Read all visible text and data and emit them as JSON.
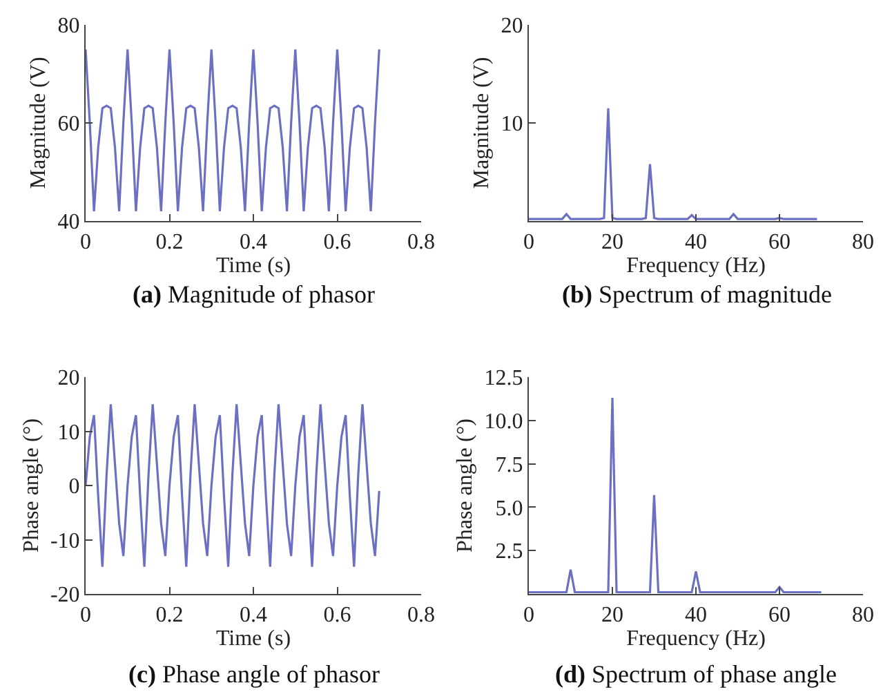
{
  "chart_data": [
    {
      "type": "line",
      "title": "(a) Magnitude of phasor",
      "xlabel": "Time (s)",
      "ylabel": "Magnitude (V)",
      "xlim": [
        0,
        0.8
      ],
      "ylim": [
        40,
        80
      ],
      "xticks": [
        0,
        0.2,
        0.4,
        0.6,
        0.8
      ],
      "yticks": [
        40,
        60,
        80
      ],
      "x": [
        0,
        0.01,
        0.02,
        0.03,
        0.04,
        0.05,
        0.06,
        0.07,
        0.08,
        0.09,
        0.1,
        0.11,
        0.12,
        0.13,
        0.14,
        0.15,
        0.16,
        0.17,
        0.18,
        0.19,
        0.2,
        0.21,
        0.22,
        0.23,
        0.24,
        0.25,
        0.26,
        0.27,
        0.28,
        0.29,
        0.3,
        0.31,
        0.32,
        0.33,
        0.34,
        0.35,
        0.36,
        0.37,
        0.38,
        0.39,
        0.4,
        0.41,
        0.42,
        0.43,
        0.44,
        0.45,
        0.46,
        0.47,
        0.48,
        0.49,
        0.5,
        0.51,
        0.52,
        0.53,
        0.54,
        0.55,
        0.56,
        0.57,
        0.58,
        0.59,
        0.6,
        0.61,
        0.62,
        0.63,
        0.64,
        0.65,
        0.66,
        0.67,
        0.68,
        0.69,
        0.7
      ],
      "series": [
        {
          "color": "#6b70c2",
          "values": [
            75,
            60,
            42,
            55,
            63,
            63.5,
            63,
            55,
            42,
            60,
            75,
            60,
            42,
            55,
            63,
            63.5,
            63,
            55,
            42,
            60,
            75,
            60,
            42,
            55,
            63,
            63.5,
            63,
            55,
            42,
            60,
            75,
            60,
            42,
            55,
            63,
            63.5,
            63,
            55,
            42,
            60,
            75,
            60,
            42,
            55,
            63,
            63.5,
            63,
            55,
            42,
            60,
            75,
            60,
            42,
            55,
            63,
            63.5,
            63,
            55,
            42,
            60,
            75,
            60,
            42,
            55,
            63,
            63.5,
            63,
            55,
            42,
            60,
            75
          ]
        }
      ]
    },
    {
      "type": "line",
      "title": "(b) Spectrum of magnitude",
      "xlabel": "Frequency (Hz)",
      "ylabel": "Magnitude (V)",
      "xlim": [
        0,
        80
      ],
      "ylim": [
        0,
        20
      ],
      "xticks": [
        0,
        20,
        40,
        60,
        80
      ],
      "yticks": [
        10,
        20
      ],
      "x": [
        0,
        1,
        2,
        3,
        4,
        5,
        6,
        7,
        8,
        9,
        10,
        11,
        12,
        13,
        14,
        15,
        16,
        17,
        18,
        19,
        20,
        21,
        22,
        23,
        24,
        25,
        26,
        27,
        28,
        29,
        30,
        31,
        32,
        33,
        34,
        35,
        36,
        37,
        38,
        39,
        40,
        41,
        42,
        43,
        44,
        45,
        46,
        47,
        48,
        49,
        50,
        51,
        52,
        53,
        54,
        55,
        56,
        57,
        58,
        59,
        60,
        61,
        62,
        63,
        64,
        65,
        66,
        67,
        68,
        69
      ],
      "series": [
        {
          "color": "#6b70c2",
          "values": [
            0.2,
            0.2,
            0.2,
            0.2,
            0.2,
            0.2,
            0.2,
            0.2,
            0.2,
            0.7,
            0.2,
            0.2,
            0.2,
            0.2,
            0.2,
            0.2,
            0.2,
            0.2,
            0.3,
            11.5,
            0.3,
            0.2,
            0.2,
            0.2,
            0.2,
            0.2,
            0.2,
            0.2,
            0.3,
            5.8,
            0.3,
            0.2,
            0.2,
            0.2,
            0.2,
            0.2,
            0.2,
            0.2,
            0.2,
            0.6,
            0.2,
            0.2,
            0.2,
            0.2,
            0.2,
            0.2,
            0.2,
            0.2,
            0.2,
            0.7,
            0.2,
            0.2,
            0.2,
            0.2,
            0.2,
            0.2,
            0.2,
            0.2,
            0.2,
            0.2,
            0.3,
            0.2,
            0.2,
            0.2,
            0.2,
            0.2,
            0.2,
            0.2,
            0.2,
            0.2
          ]
        }
      ]
    },
    {
      "type": "line",
      "title": "(c) Phase angle of phasor",
      "xlabel": "Time (s)",
      "ylabel": "Phase angle (°)",
      "xlim": [
        0,
        0.8
      ],
      "ylim": [
        -20,
        20
      ],
      "xticks": [
        0,
        0.2,
        0.4,
        0.6,
        0.8
      ],
      "yticks": [
        -20,
        -10,
        0,
        10,
        20
      ],
      "x": [
        0,
        0.01,
        0.02,
        0.03,
        0.04,
        0.05,
        0.06,
        0.07,
        0.08,
        0.09,
        0.1,
        0.11,
        0.12,
        0.13,
        0.14,
        0.15,
        0.16,
        0.17,
        0.18,
        0.19,
        0.2,
        0.21,
        0.22,
        0.23,
        0.24,
        0.25,
        0.26,
        0.27,
        0.28,
        0.29,
        0.3,
        0.31,
        0.32,
        0.33,
        0.34,
        0.35,
        0.36,
        0.37,
        0.38,
        0.39,
        0.4,
        0.41,
        0.42,
        0.43,
        0.44,
        0.45,
        0.46,
        0.47,
        0.48,
        0.49,
        0.5,
        0.51,
        0.52,
        0.53,
        0.54,
        0.55,
        0.56,
        0.57,
        0.58,
        0.59,
        0.6,
        0.61,
        0.62,
        0.63,
        0.64,
        0.65,
        0.66,
        0.67,
        0.68,
        0.69,
        0.7
      ],
      "series": [
        {
          "color": "#6b70c2",
          "values": [
            0,
            9,
            13,
            -2,
            -15,
            2,
            15,
            4,
            -7,
            -13,
            0,
            9,
            13,
            -2,
            -15,
            2,
            15,
            4,
            -7,
            -13,
            0,
            9,
            13,
            -2,
            -15,
            2,
            15,
            4,
            -7,
            -13,
            0,
            9,
            13,
            -2,
            -15,
            2,
            15,
            4,
            -7,
            -13,
            0,
            9,
            13,
            -2,
            -15,
            2,
            15,
            4,
            -7,
            -13,
            0,
            9,
            13,
            -2,
            -15,
            2,
            15,
            4,
            -7,
            -13,
            0,
            9,
            13,
            -2,
            -15,
            2,
            15,
            4,
            -7,
            -13,
            -1
          ]
        }
      ]
    },
    {
      "type": "line",
      "title": "(d) Spectrum of phase angle",
      "xlabel": "Frequency (Hz)",
      "ylabel": "Phase angle (°)",
      "xlim": [
        0,
        80
      ],
      "ylim": [
        0,
        12.5
      ],
      "xticks": [
        0,
        20,
        40,
        60,
        80
      ],
      "yticks": [
        {
          "value": 2.5,
          "label": "2.5"
        },
        {
          "value": 5,
          "label": "5.0"
        },
        {
          "value": 7.5,
          "label": "7.5"
        },
        {
          "value": 10,
          "label": "10.0"
        },
        {
          "value": 12.5,
          "label": "12.5"
        }
      ],
      "x": [
        0,
        1,
        2,
        3,
        4,
        5,
        6,
        7,
        8,
        9,
        10,
        11,
        12,
        13,
        14,
        15,
        16,
        17,
        18,
        19,
        20,
        21,
        22,
        23,
        24,
        25,
        26,
        27,
        28,
        29,
        30,
        31,
        32,
        33,
        34,
        35,
        36,
        37,
        38,
        39,
        40,
        41,
        42,
        43,
        44,
        45,
        46,
        47,
        48,
        49,
        50,
        51,
        52,
        53,
        54,
        55,
        56,
        57,
        58,
        59,
        60,
        61,
        62,
        63,
        64,
        65,
        66,
        67,
        68,
        69,
        70
      ],
      "series": [
        {
          "color": "#6b70c2",
          "values": [
            0.1,
            0.1,
            0.1,
            0.1,
            0.1,
            0.1,
            0.1,
            0.1,
            0.1,
            0.1,
            1.4,
            0.1,
            0.1,
            0.1,
            0.1,
            0.1,
            0.1,
            0.1,
            0.1,
            0.1,
            11.3,
            0.1,
            0.1,
            0.1,
            0.1,
            0.1,
            0.1,
            0.1,
            0.1,
            0.1,
            5.7,
            0.1,
            0.1,
            0.1,
            0.1,
            0.1,
            0.1,
            0.1,
            0.1,
            0.1,
            1.3,
            0.1,
            0.1,
            0.1,
            0.1,
            0.1,
            0.1,
            0.1,
            0.1,
            0.1,
            0.1,
            0.1,
            0.1,
            0.1,
            0.1,
            0.1,
            0.1,
            0.1,
            0.1,
            0.1,
            0.4,
            0.1,
            0.1,
            0.1,
            0.1,
            0.1,
            0.1,
            0.1,
            0.1,
            0.1,
            0.1
          ]
        }
      ]
    }
  ]
}
